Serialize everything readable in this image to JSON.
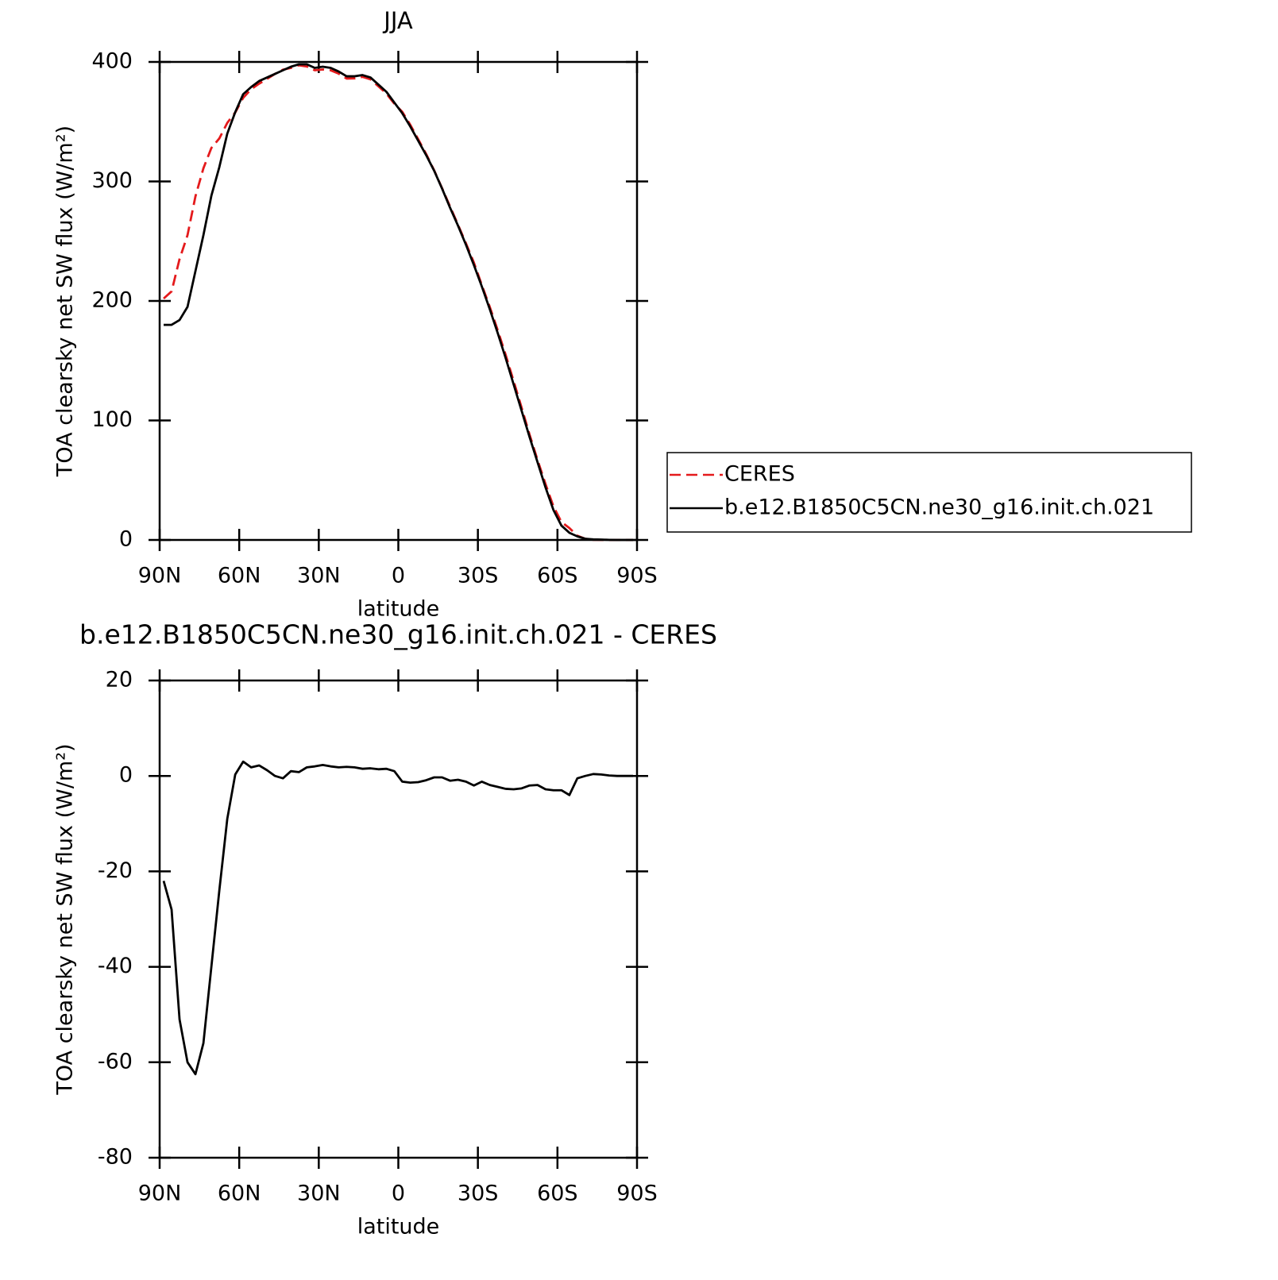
{
  "chart_data": [
    {
      "type": "line",
      "title": "JJA",
      "x_label": "latitude",
      "y_label": "TOA clearsky net SW flux (W/m²)",
      "x": [
        88.5,
        85.5,
        82.5,
        79.5,
        76.5,
        73.5,
        70.5,
        67.5,
        64.5,
        61.5,
        58.5,
        55.5,
        52.5,
        49.5,
        46.5,
        43.5,
        40.5,
        37.5,
        34.5,
        31.5,
        28.5,
        25.5,
        22.5,
        19.5,
        16.5,
        13.5,
        10.5,
        7.5,
        4.5,
        1.5,
        -1.5,
        -4.5,
        -7.5,
        -10.5,
        -13.5,
        -16.5,
        -19.5,
        -22.5,
        -25.5,
        -28.5,
        -31.5,
        -34.5,
        -37.5,
        -40.5,
        -43.5,
        -46.5,
        -49.5,
        -52.5,
        -55.5,
        -58.5,
        -61.5,
        -64.5,
        -67.5,
        -70.5,
        -73.5,
        -76.5,
        -79.5,
        -82.5,
        -85.5,
        -88.5
      ],
      "series": [
        {
          "name": "CERES",
          "color": "#e41a1c",
          "style": "dashed",
          "values": [
            202,
            208,
            235,
            255,
            287.5,
            311,
            328,
            336,
            349,
            357.7,
            370,
            377.2,
            381.8,
            385.8,
            390,
            393.5,
            395,
            397.2,
            396.2,
            393,
            393.7,
            393,
            390.2,
            386.1,
            386.2,
            387.5,
            385.4,
            379.6,
            373.5,
            365,
            358.2,
            347.4,
            335.3,
            322.9,
            309.3,
            294.3,
            279,
            263.8,
            248.2,
            232,
            213.2,
            194.9,
            175.3,
            154.7,
            132.8,
            110.6,
            88,
            66.9,
            46.8,
            28,
            15,
            10,
            3.5,
            1,
            0.1,
            0,
            0,
            0,
            0,
            0
          ]
        },
        {
          "name": "b.e12.B1850C5CN.ne30_g16.init.ch.021",
          "color": "#000000",
          "style": "solid",
          "values": [
            180,
            180,
            184,
            195,
            225,
            255,
            288,
            312,
            340,
            358,
            373,
            379,
            384,
            387,
            390,
            393,
            396,
            398,
            398,
            395,
            396,
            395,
            392,
            388,
            388,
            389,
            387,
            381,
            375,
            366,
            357,
            346,
            334,
            322,
            309,
            294,
            278,
            263,
            247,
            230,
            212,
            193,
            173,
            152,
            130,
            108,
            86,
            65,
            44,
            25,
            12,
            6,
            3,
            1,
            0.5,
            0.3,
            0.1,
            0,
            0,
            0
          ]
        }
      ],
      "xlim": [
        90,
        -90
      ],
      "xticks": [
        {
          "value": 90,
          "label": "90N"
        },
        {
          "value": 60,
          "label": "60N"
        },
        {
          "value": 30,
          "label": "30N"
        },
        0,
        {
          "value": -30,
          "label": "30S"
        },
        {
          "value": -60,
          "label": "60S"
        },
        {
          "value": -90,
          "label": "90S"
        }
      ],
      "ylim": [
        0,
        400
      ],
      "yticks": [
        0,
        100,
        200,
        300,
        400
      ],
      "legend": "right"
    },
    {
      "type": "line",
      "title": "b.e12.B1850C5CN.ne30_g16.init.ch.021 - CERES",
      "x_label": "latitude",
      "y_label": "TOA clearsky net SW flux (W/m²)",
      "x": [
        88.5,
        85.5,
        82.5,
        79.5,
        76.5,
        73.5,
        70.5,
        67.5,
        64.5,
        61.5,
        58.5,
        55.5,
        52.5,
        49.5,
        46.5,
        43.5,
        40.5,
        37.5,
        34.5,
        31.5,
        28.5,
        25.5,
        22.5,
        19.5,
        16.5,
        13.5,
        10.5,
        7.5,
        4.5,
        1.5,
        -1.5,
        -4.5,
        -7.5,
        -10.5,
        -13.5,
        -16.5,
        -19.5,
        -22.5,
        -25.5,
        -28.5,
        -31.5,
        -34.5,
        -37.5,
        -40.5,
        -43.5,
        -46.5,
        -49.5,
        -52.5,
        -55.5,
        -58.5,
        -61.5,
        -64.5,
        -67.5,
        -70.5,
        -73.5,
        -76.5,
        -79.5,
        -82.5,
        -85.5,
        -88.5
      ],
      "series": [
        {
          "color": "#000000",
          "style": "solid",
          "values": [
            -22,
            -28,
            -51,
            -60,
            -62.5,
            -56,
            -40,
            -24,
            -9,
            0.3,
            3,
            1.8,
            2.2,
            1.2,
            0,
            -0.5,
            1,
            0.8,
            1.8,
            2,
            2.3,
            2,
            1.8,
            1.9,
            1.8,
            1.5,
            1.6,
            1.4,
            1.5,
            1,
            -1.2,
            -1.4,
            -1.3,
            -0.9,
            -0.3,
            -0.3,
            -1,
            -0.8,
            -1.2,
            -2,
            -1.2,
            -1.9,
            -2.3,
            -2.7,
            -2.8,
            -2.6,
            -2,
            -1.9,
            -2.8,
            -3,
            -3,
            -4,
            -0.5,
            0,
            0.4,
            0.3,
            0.1,
            0,
            0,
            0
          ]
        }
      ],
      "xlim": [
        90,
        -90
      ],
      "xticks": [
        {
          "value": 90,
          "label": "90N"
        },
        {
          "value": 60,
          "label": "60N"
        },
        {
          "value": 30,
          "label": "30N"
        },
        0,
        {
          "value": -30,
          "label": "30S"
        },
        {
          "value": -60,
          "label": "60S"
        },
        {
          "value": -90,
          "label": "90S"
        }
      ],
      "ylim": [
        -80,
        20
      ],
      "yticks": [
        -80,
        -60,
        -40,
        -20,
        0,
        20
      ]
    }
  ]
}
